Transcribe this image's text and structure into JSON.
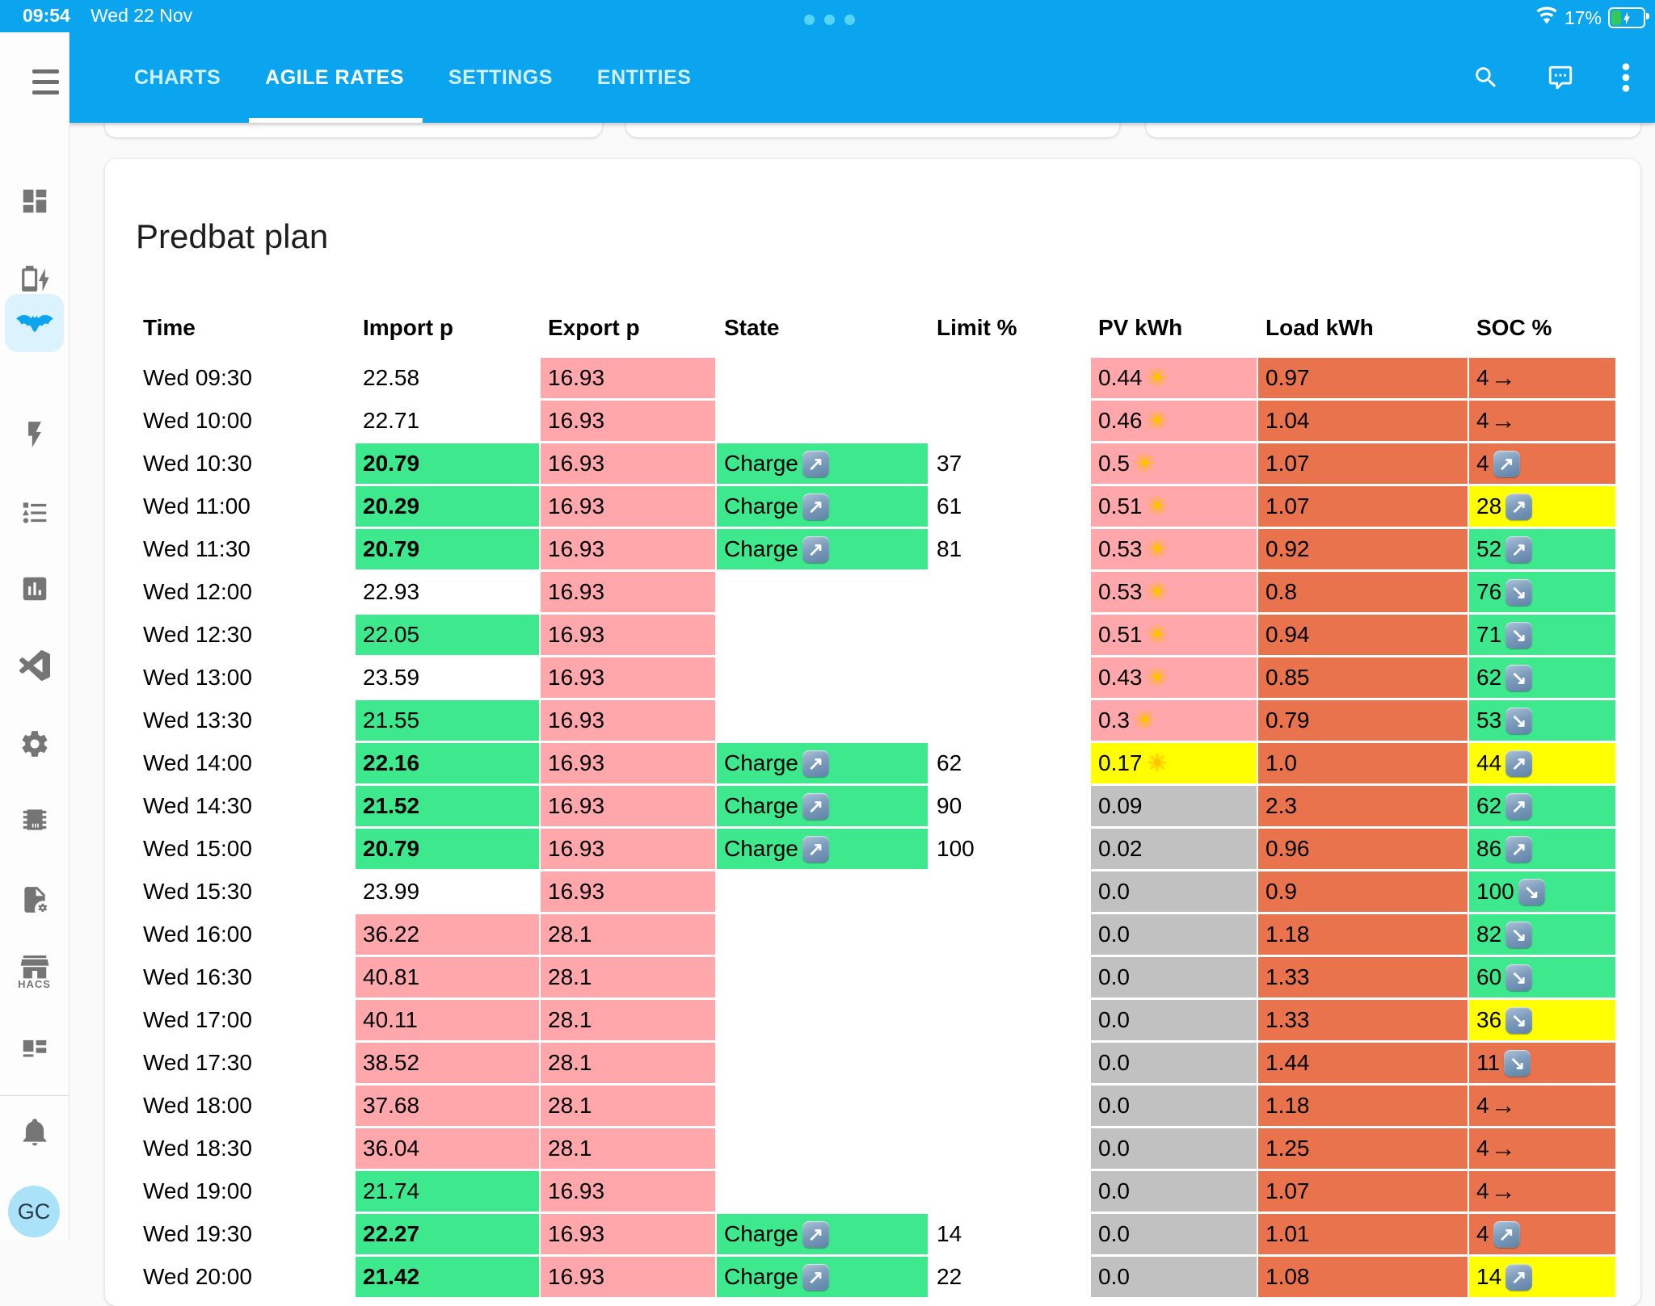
{
  "status_bar": {
    "time": "09:54",
    "date": "Wed 22 Nov",
    "battery_percent": "17%"
  },
  "app_header": {
    "tabs": [
      {
        "label": "CHARTS",
        "active": false
      },
      {
        "label": "AGILE RATES",
        "active": true
      },
      {
        "label": "SETTINGS",
        "active": false
      },
      {
        "label": "ENTITIES",
        "active": false
      }
    ]
  },
  "sidebar": {
    "hacs_label": "HACS",
    "avatar_initials": "GC"
  },
  "plan_card": {
    "title": "Predbat plan"
  },
  "table": {
    "columns": [
      "Time",
      "Import p",
      "Export p",
      "State",
      "Limit %",
      "PV kWh",
      "Load kWh",
      "SOC %"
    ],
    "colors": {
      "pink": "#FFA7AA",
      "green": "#3EE98D",
      "orange": "#E8734D",
      "yellow": "#FFFF00",
      "gray": "#C1C1C1",
      "none": "transparent"
    },
    "charge_label": "Charge",
    "rows": [
      {
        "time": "Wed 09:30",
        "imp": {
          "v": "22.58",
          "bg": "none",
          "bold": false
        },
        "exp": {
          "v": "16.93",
          "bg": "pink"
        },
        "state": {
          "label": "",
          "bg": "none"
        },
        "limit": "",
        "pv": {
          "v": "0.44",
          "bg": "pink",
          "sun": true
        },
        "load": {
          "v": "0.97",
          "bg": "orange"
        },
        "soc": {
          "v": "4",
          "dir": "flat",
          "bg": "orange"
        }
      },
      {
        "time": "Wed 10:00",
        "imp": {
          "v": "22.71",
          "bg": "none",
          "bold": false
        },
        "exp": {
          "v": "16.93",
          "bg": "pink"
        },
        "state": {
          "label": "",
          "bg": "none"
        },
        "limit": "",
        "pv": {
          "v": "0.46",
          "bg": "pink",
          "sun": true
        },
        "load": {
          "v": "1.04",
          "bg": "orange"
        },
        "soc": {
          "v": "4",
          "dir": "flat",
          "bg": "orange"
        }
      },
      {
        "time": "Wed 10:30",
        "imp": {
          "v": "20.79",
          "bg": "green",
          "bold": true
        },
        "exp": {
          "v": "16.93",
          "bg": "pink"
        },
        "state": {
          "label": "Charge",
          "bg": "green"
        },
        "limit": "37",
        "pv": {
          "v": "0.5",
          "bg": "pink",
          "sun": true
        },
        "load": {
          "v": "1.07",
          "bg": "orange"
        },
        "soc": {
          "v": "4",
          "dir": "up",
          "bg": "orange"
        }
      },
      {
        "time": "Wed 11:00",
        "imp": {
          "v": "20.29",
          "bg": "green",
          "bold": true
        },
        "exp": {
          "v": "16.93",
          "bg": "pink"
        },
        "state": {
          "label": "Charge",
          "bg": "green"
        },
        "limit": "61",
        "pv": {
          "v": "0.51",
          "bg": "pink",
          "sun": true
        },
        "load": {
          "v": "1.07",
          "bg": "orange"
        },
        "soc": {
          "v": "28",
          "dir": "up",
          "bg": "yellow"
        }
      },
      {
        "time": "Wed 11:30",
        "imp": {
          "v": "20.79",
          "bg": "green",
          "bold": true
        },
        "exp": {
          "v": "16.93",
          "bg": "pink"
        },
        "state": {
          "label": "Charge",
          "bg": "green"
        },
        "limit": "81",
        "pv": {
          "v": "0.53",
          "bg": "pink",
          "sun": true
        },
        "load": {
          "v": "0.92",
          "bg": "orange"
        },
        "soc": {
          "v": "52",
          "dir": "up",
          "bg": "green"
        }
      },
      {
        "time": "Wed 12:00",
        "imp": {
          "v": "22.93",
          "bg": "none",
          "bold": false
        },
        "exp": {
          "v": "16.93",
          "bg": "pink"
        },
        "state": {
          "label": "",
          "bg": "none"
        },
        "limit": "",
        "pv": {
          "v": "0.53",
          "bg": "pink",
          "sun": true
        },
        "load": {
          "v": "0.8",
          "bg": "orange"
        },
        "soc": {
          "v": "76",
          "dir": "down",
          "bg": "green"
        }
      },
      {
        "time": "Wed 12:30",
        "imp": {
          "v": "22.05",
          "bg": "green",
          "bold": false
        },
        "exp": {
          "v": "16.93",
          "bg": "pink"
        },
        "state": {
          "label": "",
          "bg": "none"
        },
        "limit": "",
        "pv": {
          "v": "0.51",
          "bg": "pink",
          "sun": true
        },
        "load": {
          "v": "0.94",
          "bg": "orange"
        },
        "soc": {
          "v": "71",
          "dir": "down",
          "bg": "green"
        }
      },
      {
        "time": "Wed 13:00",
        "imp": {
          "v": "23.59",
          "bg": "none",
          "bold": false
        },
        "exp": {
          "v": "16.93",
          "bg": "pink"
        },
        "state": {
          "label": "",
          "bg": "none"
        },
        "limit": "",
        "pv": {
          "v": "0.43",
          "bg": "pink",
          "sun": true
        },
        "load": {
          "v": "0.85",
          "bg": "orange"
        },
        "soc": {
          "v": "62",
          "dir": "down",
          "bg": "green"
        }
      },
      {
        "time": "Wed 13:30",
        "imp": {
          "v": "21.55",
          "bg": "green",
          "bold": false
        },
        "exp": {
          "v": "16.93",
          "bg": "pink"
        },
        "state": {
          "label": "",
          "bg": "none"
        },
        "limit": "",
        "pv": {
          "v": "0.3",
          "bg": "pink",
          "sun": true
        },
        "load": {
          "v": "0.79",
          "bg": "orange"
        },
        "soc": {
          "v": "53",
          "dir": "down",
          "bg": "green"
        }
      },
      {
        "time": "Wed 14:00",
        "imp": {
          "v": "22.16",
          "bg": "green",
          "bold": true
        },
        "exp": {
          "v": "16.93",
          "bg": "pink"
        },
        "state": {
          "label": "Charge",
          "bg": "green"
        },
        "limit": "62",
        "pv": {
          "v": "0.17",
          "bg": "yellow",
          "sun": true
        },
        "load": {
          "v": "1.0",
          "bg": "orange"
        },
        "soc": {
          "v": "44",
          "dir": "up",
          "bg": "yellow"
        }
      },
      {
        "time": "Wed 14:30",
        "imp": {
          "v": "21.52",
          "bg": "green",
          "bold": true
        },
        "exp": {
          "v": "16.93",
          "bg": "pink"
        },
        "state": {
          "label": "Charge",
          "bg": "green"
        },
        "limit": "90",
        "pv": {
          "v": "0.09",
          "bg": "gray",
          "sun": false
        },
        "load": {
          "v": "2.3",
          "bg": "orange"
        },
        "soc": {
          "v": "62",
          "dir": "up",
          "bg": "green"
        }
      },
      {
        "time": "Wed 15:00",
        "imp": {
          "v": "20.79",
          "bg": "green",
          "bold": true
        },
        "exp": {
          "v": "16.93",
          "bg": "pink"
        },
        "state": {
          "label": "Charge",
          "bg": "green"
        },
        "limit": "100",
        "pv": {
          "v": "0.02",
          "bg": "gray",
          "sun": false
        },
        "load": {
          "v": "0.96",
          "bg": "orange"
        },
        "soc": {
          "v": "86",
          "dir": "up",
          "bg": "green"
        }
      },
      {
        "time": "Wed 15:30",
        "imp": {
          "v": "23.99",
          "bg": "none",
          "bold": false
        },
        "exp": {
          "v": "16.93",
          "bg": "pink"
        },
        "state": {
          "label": "",
          "bg": "none"
        },
        "limit": "",
        "pv": {
          "v": "0.0",
          "bg": "gray",
          "sun": false
        },
        "load": {
          "v": "0.9",
          "bg": "orange"
        },
        "soc": {
          "v": "100",
          "dir": "down",
          "bg": "green"
        }
      },
      {
        "time": "Wed 16:00",
        "imp": {
          "v": "36.22",
          "bg": "pink",
          "bold": false
        },
        "exp": {
          "v": "28.1",
          "bg": "pink"
        },
        "state": {
          "label": "",
          "bg": "none"
        },
        "limit": "",
        "pv": {
          "v": "0.0",
          "bg": "gray",
          "sun": false
        },
        "load": {
          "v": "1.18",
          "bg": "orange"
        },
        "soc": {
          "v": "82",
          "dir": "down",
          "bg": "green"
        }
      },
      {
        "time": "Wed 16:30",
        "imp": {
          "v": "40.81",
          "bg": "pink",
          "bold": false
        },
        "exp": {
          "v": "28.1",
          "bg": "pink"
        },
        "state": {
          "label": "",
          "bg": "none"
        },
        "limit": "",
        "pv": {
          "v": "0.0",
          "bg": "gray",
          "sun": false
        },
        "load": {
          "v": "1.33",
          "bg": "orange"
        },
        "soc": {
          "v": "60",
          "dir": "down",
          "bg": "green"
        }
      },
      {
        "time": "Wed 17:00",
        "imp": {
          "v": "40.11",
          "bg": "pink",
          "bold": false
        },
        "exp": {
          "v": "28.1",
          "bg": "pink"
        },
        "state": {
          "label": "",
          "bg": "none"
        },
        "limit": "",
        "pv": {
          "v": "0.0",
          "bg": "gray",
          "sun": false
        },
        "load": {
          "v": "1.33",
          "bg": "orange"
        },
        "soc": {
          "v": "36",
          "dir": "down",
          "bg": "yellow"
        }
      },
      {
        "time": "Wed 17:30",
        "imp": {
          "v": "38.52",
          "bg": "pink",
          "bold": false
        },
        "exp": {
          "v": "28.1",
          "bg": "pink"
        },
        "state": {
          "label": "",
          "bg": "none"
        },
        "limit": "",
        "pv": {
          "v": "0.0",
          "bg": "gray",
          "sun": false
        },
        "load": {
          "v": "1.44",
          "bg": "orange"
        },
        "soc": {
          "v": "11",
          "dir": "down",
          "bg": "orange"
        }
      },
      {
        "time": "Wed 18:00",
        "imp": {
          "v": "37.68",
          "bg": "pink",
          "bold": false
        },
        "exp": {
          "v": "28.1",
          "bg": "pink"
        },
        "state": {
          "label": "",
          "bg": "none"
        },
        "limit": "",
        "pv": {
          "v": "0.0",
          "bg": "gray",
          "sun": false
        },
        "load": {
          "v": "1.18",
          "bg": "orange"
        },
        "soc": {
          "v": "4",
          "dir": "flat",
          "bg": "orange"
        }
      },
      {
        "time": "Wed 18:30",
        "imp": {
          "v": "36.04",
          "bg": "pink",
          "bold": false
        },
        "exp": {
          "v": "28.1",
          "bg": "pink"
        },
        "state": {
          "label": "",
          "bg": "none"
        },
        "limit": "",
        "pv": {
          "v": "0.0",
          "bg": "gray",
          "sun": false
        },
        "load": {
          "v": "1.25",
          "bg": "orange"
        },
        "soc": {
          "v": "4",
          "dir": "flat",
          "bg": "orange"
        }
      },
      {
        "time": "Wed 19:00",
        "imp": {
          "v": "21.74",
          "bg": "green",
          "bold": false
        },
        "exp": {
          "v": "16.93",
          "bg": "pink"
        },
        "state": {
          "label": "",
          "bg": "none"
        },
        "limit": "",
        "pv": {
          "v": "0.0",
          "bg": "gray",
          "sun": false
        },
        "load": {
          "v": "1.07",
          "bg": "orange"
        },
        "soc": {
          "v": "4",
          "dir": "flat",
          "bg": "orange"
        }
      },
      {
        "time": "Wed 19:30",
        "imp": {
          "v": "22.27",
          "bg": "green",
          "bold": true
        },
        "exp": {
          "v": "16.93",
          "bg": "pink"
        },
        "state": {
          "label": "Charge",
          "bg": "green"
        },
        "limit": "14",
        "pv": {
          "v": "0.0",
          "bg": "gray",
          "sun": false
        },
        "load": {
          "v": "1.01",
          "bg": "orange"
        },
        "soc": {
          "v": "4",
          "dir": "up",
          "bg": "orange"
        }
      },
      {
        "time": "Wed 20:00",
        "imp": {
          "v": "21.42",
          "bg": "green",
          "bold": true
        },
        "exp": {
          "v": "16.93",
          "bg": "pink"
        },
        "state": {
          "label": "Charge",
          "bg": "green"
        },
        "limit": "22",
        "pv": {
          "v": "0.0",
          "bg": "gray",
          "sun": false
        },
        "load": {
          "v": "1.08",
          "bg": "orange"
        },
        "soc": {
          "v": "14",
          "dir": "up",
          "bg": "yellow"
        }
      }
    ]
  }
}
